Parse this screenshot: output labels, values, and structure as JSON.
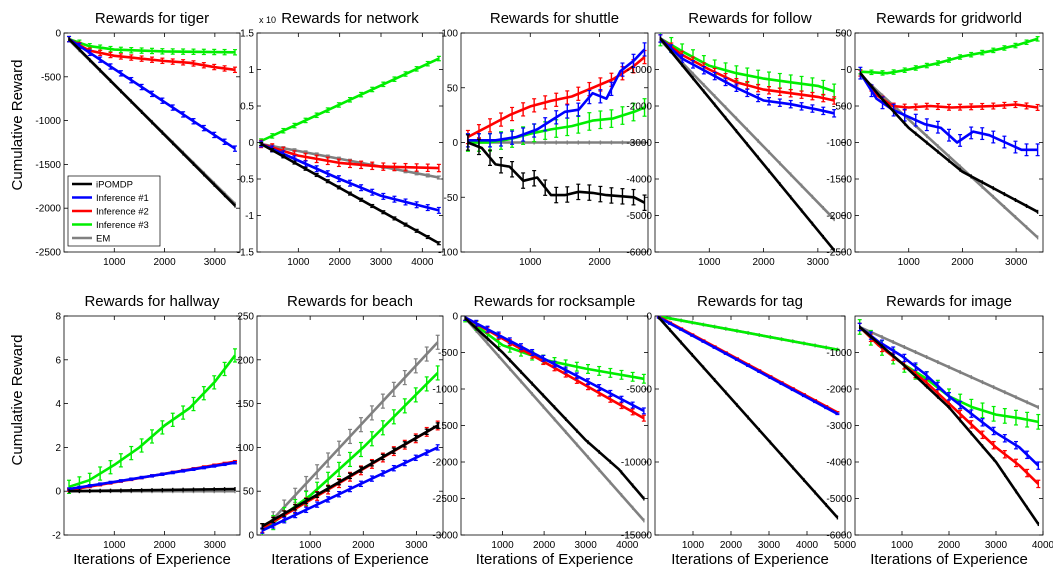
{
  "figure": {
    "ylabel": "Cumulative Reward",
    "xlabel": "Iterations of Experience",
    "legend": [
      "iPOMDP",
      "Inference #1",
      "Inference #2",
      "Inference #3",
      "EM"
    ],
    "colors": {
      "iPOMDP": "#000000",
      "Inference #1": "#0000ff",
      "Inference #2": "#ff0000",
      "Inference #3": "#00ee00",
      "EM": "#808080"
    }
  },
  "chart_data": [
    {
      "type": "line",
      "title": "Rewards for tiger",
      "xlim": [
        0,
        3500
      ],
      "ylim": [
        -2500,
        0
      ],
      "xticks": [
        1000,
        2000,
        3000
      ],
      "yticks": [
        0,
        -500,
        -1000,
        -1500,
        -2000,
        -2500
      ],
      "series": [
        {
          "name": "iPOMDP",
          "x": [
            100,
            3400
          ],
          "y": [
            -70,
            -1970
          ],
          "err": 0
        },
        {
          "name": "Inference #1",
          "x": [
            100,
            3400
          ],
          "y": [
            -70,
            -1320
          ],
          "err": 30
        },
        {
          "name": "Inference #2",
          "x": [
            100,
            500,
            1000,
            1500,
            2000,
            2500,
            3000,
            3400
          ],
          "y": [
            -70,
            -200,
            -260,
            -290,
            -320,
            -340,
            -390,
            -420
          ],
          "err": 30
        },
        {
          "name": "Inference #3",
          "x": [
            100,
            500,
            1000,
            2000,
            3400
          ],
          "y": [
            -70,
            -150,
            -190,
            -210,
            -220
          ],
          "err": 30
        },
        {
          "name": "EM",
          "x": [
            100,
            3400
          ],
          "y": [
            -80,
            -1950
          ],
          "err": 0
        }
      ]
    },
    {
      "type": "line",
      "title": "Rewards for network",
      "exponent": "x 10",
      "xlim": [
        0,
        4500
      ],
      "ylim": [
        -1.5,
        1.5
      ],
      "xticks": [
        1000,
        2000,
        3000,
        4000
      ],
      "yticks": [
        1.5,
        1,
        0.5,
        0,
        -0.5,
        -1,
        -1.5
      ],
      "series": [
        {
          "name": "iPOMDP",
          "x": [
            100,
            4400
          ],
          "y": [
            -0.02,
            -1.38
          ],
          "err": 0.02
        },
        {
          "name": "Inference #1",
          "x": [
            100,
            2000,
            3000,
            4400
          ],
          "y": [
            -0.02,
            -0.5,
            -0.73,
            -0.93
          ],
          "err": 0.04
        },
        {
          "name": "Inference #2",
          "x": [
            100,
            1000,
            2000,
            3000,
            4400
          ],
          "y": [
            -0.02,
            -0.18,
            -0.28,
            -0.33,
            -0.35
          ],
          "err": 0.05
        },
        {
          "name": "Inference #3",
          "x": [
            100,
            4400
          ],
          "y": [
            0.02,
            1.15
          ],
          "err": 0.03
        },
        {
          "name": "EM",
          "x": [
            100,
            4400
          ],
          "y": [
            -0.02,
            -0.48
          ],
          "err": 0.02
        }
      ]
    },
    {
      "type": "line",
      "title": "Rewards for shuttle",
      "xlim": [
        0,
        2700
      ],
      "ylim": [
        -100,
        100
      ],
      "xticks": [
        1000,
        2000
      ],
      "yticks": [
        100,
        50,
        0,
        -50,
        -100
      ],
      "series": [
        {
          "name": "iPOMDP",
          "x": [
            100,
            300,
            500,
            700,
            900,
            1100,
            1300,
            1500,
            1700,
            1900,
            2100,
            2300,
            2500,
            2650
          ],
          "y": [
            0,
            -5,
            -20,
            -22,
            -35,
            -32,
            -48,
            -48,
            -45,
            -46,
            -48,
            -49,
            -50,
            -55
          ],
          "err": 7
        },
        {
          "name": "Inference #1",
          "x": [
            100,
            500,
            800,
            1100,
            1300,
            1500,
            1700,
            1900,
            2100,
            2300,
            2500,
            2650
          ],
          "y": [
            2,
            2,
            5,
            12,
            20,
            28,
            30,
            45,
            40,
            65,
            75,
            85
          ],
          "err": 6
        },
        {
          "name": "Inference #2",
          "x": [
            100,
            400,
            700,
            1000,
            1300,
            1600,
            1900,
            2200,
            2500,
            2650
          ],
          "y": [
            5,
            15,
            25,
            33,
            38,
            42,
            50,
            58,
            70,
            78
          ],
          "err": 6
        },
        {
          "name": "Inference #3",
          "x": [
            100,
            400,
            700,
            1000,
            1300,
            1600,
            1900,
            2200,
            2500,
            2650
          ],
          "y": [
            0,
            0,
            3,
            8,
            12,
            15,
            20,
            22,
            28,
            32
          ],
          "err": 8
        },
        {
          "name": "EM",
          "x": [
            100,
            2650
          ],
          "y": [
            0,
            0
          ],
          "err": 0
        }
      ]
    },
    {
      "type": "line",
      "title": "Rewards for follow",
      "xlim": [
        0,
        3500
      ],
      "ylim": [
        -6000,
        0
      ],
      "xticks": [
        1000,
        2000,
        3000
      ],
      "yticks": [
        -1000,
        -2000,
        -3000,
        -4000,
        -5000,
        -6000
      ],
      "series": [
        {
          "name": "iPOMDP",
          "x": [
            100,
            3300
          ],
          "y": [
            -150,
            -5950
          ],
          "err": 0
        },
        {
          "name": "Inference #1",
          "x": [
            100,
            500,
            1000,
            1500,
            2000,
            2500,
            3000,
            3300
          ],
          "y": [
            -150,
            -700,
            -1100,
            -1500,
            -1850,
            -1950,
            -2100,
            -2200
          ],
          "err": 100
        },
        {
          "name": "Inference #2",
          "x": [
            100,
            500,
            1000,
            1500,
            2000,
            2500,
            3000,
            3300
          ],
          "y": [
            -150,
            -600,
            -1000,
            -1350,
            -1550,
            -1650,
            -1750,
            -1850
          ],
          "err": 100
        },
        {
          "name": "Inference #3",
          "x": [
            100,
            500,
            1000,
            1500,
            2000,
            2500,
            3000,
            3300
          ],
          "y": [
            -150,
            -500,
            -900,
            -1100,
            -1250,
            -1350,
            -1450,
            -1600
          ],
          "err": 200
        },
        {
          "name": "EM",
          "x": [
            100,
            3300
          ],
          "y": [
            -200,
            -5100
          ],
          "err": 0
        }
      ]
    },
    {
      "type": "line",
      "title": "Rewards for gridworld",
      "xlim": [
        0,
        3500
      ],
      "ylim": [
        -2500,
        500
      ],
      "xticks": [
        1000,
        2000,
        3000
      ],
      "yticks": [
        500,
        0,
        -500,
        -1000,
        -1500,
        -2000,
        -2500
      ],
      "series": [
        {
          "name": "iPOMDP",
          "x": [
            100,
            500,
            1000,
            2000,
            3400
          ],
          "y": [
            -50,
            -400,
            -800,
            -1400,
            -1950
          ],
          "err": 0
        },
        {
          "name": "Inference #1",
          "x": [
            100,
            400,
            700,
            1000,
            1300,
            1600,
            1900,
            2200,
            2500,
            2800,
            3100,
            3400
          ],
          "y": [
            -50,
            -400,
            -550,
            -650,
            -750,
            -800,
            -1000,
            -850,
            -900,
            -1000,
            -1100,
            -1100
          ],
          "err": 80
        },
        {
          "name": "Inference #2",
          "x": [
            100,
            400,
            700,
            1000,
            1400,
            1800,
            2200,
            2600,
            3000,
            3400
          ],
          "y": [
            -50,
            -350,
            -500,
            -520,
            -500,
            -520,
            -510,
            -500,
            -480,
            -520
          ],
          "err": 40
        },
        {
          "name": "Inference #3",
          "x": [
            100,
            600,
            1000,
            1500,
            2000,
            2500,
            3000,
            3400
          ],
          "y": [
            -30,
            -50,
            0,
            80,
            180,
            250,
            330,
            420
          ],
          "err": 30
        },
        {
          "name": "EM",
          "x": [
            100,
            3400
          ],
          "y": [
            -80,
            -2300
          ],
          "err": 0
        }
      ]
    },
    {
      "type": "line",
      "title": "Rewards for hallway",
      "xlim": [
        0,
        3500
      ],
      "ylim": [
        -2,
        8
      ],
      "xticks": [
        1000,
        2000,
        3000
      ],
      "yticks": [
        8,
        6,
        4,
        2,
        0,
        -2
      ],
      "series": [
        {
          "name": "iPOMDP",
          "x": [
            100,
            3400
          ],
          "y": [
            0,
            0.1
          ],
          "err": 0
        },
        {
          "name": "Inference #1",
          "x": [
            100,
            3400
          ],
          "y": [
            0.1,
            1.3
          ],
          "err": 0.05
        },
        {
          "name": "Inference #2",
          "x": [
            100,
            3400
          ],
          "y": [
            0.05,
            1.35
          ],
          "err": 0.05
        },
        {
          "name": "Inference #3",
          "x": [
            100,
            500,
            1000,
            1500,
            2000,
            2500,
            3000,
            3400
          ],
          "y": [
            0.2,
            0.5,
            1.2,
            2,
            3,
            3.8,
            5,
            6.2
          ],
          "err": 0.3
        },
        {
          "name": "EM",
          "x": [
            100,
            3400
          ],
          "y": [
            0,
            0
          ],
          "err": 0
        }
      ]
    },
    {
      "type": "line",
      "title": "Rewards for beach",
      "xlim": [
        0,
        3500
      ],
      "ylim": [
        0,
        250
      ],
      "xticks": [
        1000,
        2000,
        3000
      ],
      "yticks": [
        250,
        200,
        150,
        100,
        50,
        0
      ],
      "series": [
        {
          "name": "iPOMDP",
          "x": [
            100,
            3400
          ],
          "y": [
            10,
            125
          ],
          "err": 3
        },
        {
          "name": "Inference #1",
          "x": [
            100,
            3400
          ],
          "y": [
            5,
            100
          ],
          "err": 3
        },
        {
          "name": "Inference #2",
          "x": [
            100,
            3400
          ],
          "y": [
            8,
            125
          ],
          "err": 5
        },
        {
          "name": "Inference #3",
          "x": [
            100,
            1000,
            2000,
            3400
          ],
          "y": [
            5,
            45,
            100,
            185
          ],
          "err": 8
        },
        {
          "name": "EM",
          "x": [
            100,
            3400
          ],
          "y": [
            5,
            220
          ],
          "err": 8
        }
      ]
    },
    {
      "type": "line",
      "title": "Rewards for rocksample",
      "xlim": [
        0,
        4500
      ],
      "ylim": [
        -3000,
        0
      ],
      "xticks": [
        1000,
        2000,
        3000,
        4000
      ],
      "yticks": [
        0,
        -500,
        -1000,
        -1500,
        -2000,
        -2500,
        -3000
      ],
      "series": [
        {
          "name": "iPOMDP",
          "x": [
            100,
            1000,
            2000,
            3000,
            3800,
            4400
          ],
          "y": [
            -30,
            -500,
            -1100,
            -1700,
            -2100,
            -2500
          ],
          "err": 0
        },
        {
          "name": "Inference #1",
          "x": [
            100,
            4400
          ],
          "y": [
            -20,
            -1300
          ],
          "err": 40
        },
        {
          "name": "Inference #2",
          "x": [
            100,
            4400
          ],
          "y": [
            -20,
            -1400
          ],
          "err": 40
        },
        {
          "name": "Inference #3",
          "x": [
            100,
            1000,
            2000,
            3000,
            4400
          ],
          "y": [
            -20,
            -400,
            -600,
            -720,
            -860
          ],
          "err": 60
        },
        {
          "name": "EM",
          "x": [
            100,
            4400
          ],
          "y": [
            -30,
            -2800
          ],
          "err": 0
        }
      ]
    },
    {
      "type": "line",
      "title": "Rewards for tag",
      "xlim": [
        0,
        5000
      ],
      "ylim": [
        -15000,
        0
      ],
      "xticks": [
        1000,
        2000,
        3000,
        4000,
        5000
      ],
      "yticks": [
        0,
        -5000,
        -10000,
        -15000
      ],
      "series": [
        {
          "name": "iPOMDP",
          "x": [
            100,
            4800
          ],
          "y": [
            -100,
            -13800
          ],
          "err": 0
        },
        {
          "name": "Inference #1",
          "x": [
            100,
            4800
          ],
          "y": [
            -100,
            -6700
          ],
          "err": 50
        },
        {
          "name": "Inference #2",
          "x": [
            100,
            4800
          ],
          "y": [
            -50,
            -6600
          ],
          "err": 50
        },
        {
          "name": "Inference #3",
          "x": [
            100,
            4800
          ],
          "y": [
            -20,
            -2300
          ],
          "err": 30
        },
        {
          "name": "EM",
          "x": [
            100,
            4800
          ],
          "y": [
            -20,
            -2300
          ],
          "err": 0
        }
      ]
    },
    {
      "type": "line",
      "title": "Rewards for image",
      "xlim": [
        0,
        4000
      ],
      "ylim": [
        -6000,
        0
      ],
      "xticks": [
        1000,
        2000,
        3000,
        4000
      ],
      "yticks": [
        -1000,
        -2000,
        -3000,
        -4000,
        -5000,
        -6000
      ],
      "series": [
        {
          "name": "iPOMDP",
          "x": [
            100,
            1000,
            2000,
            3000,
            3900
          ],
          "y": [
            -300,
            -1300,
            -2500,
            -4000,
            -5700
          ],
          "err": 0
        },
        {
          "name": "Inference #1",
          "x": [
            100,
            500,
            1000,
            1500,
            2000,
            2500,
            3000,
            3500,
            3900
          ],
          "y": [
            -300,
            -700,
            -1100,
            -1600,
            -2200,
            -2700,
            -3200,
            -3600,
            -4100
          ],
          "err": 100
        },
        {
          "name": "Inference #2",
          "x": [
            100,
            500,
            1000,
            1500,
            2000,
            2500,
            3000,
            3500,
            3900
          ],
          "y": [
            -300,
            -800,
            -1300,
            -1800,
            -2400,
            -3000,
            -3600,
            -4100,
            -4600
          ],
          "err": 100
        },
        {
          "name": "Inference #3",
          "x": [
            100,
            500,
            1000,
            1500,
            2000,
            2500,
            3000,
            3500,
            3900
          ],
          "y": [
            -300,
            -800,
            -1300,
            -1700,
            -2200,
            -2500,
            -2700,
            -2800,
            -2900
          ],
          "err": 200
        },
        {
          "name": "EM",
          "x": [
            100,
            3900
          ],
          "y": [
            -300,
            -2500
          ],
          "err": 0
        }
      ]
    }
  ]
}
